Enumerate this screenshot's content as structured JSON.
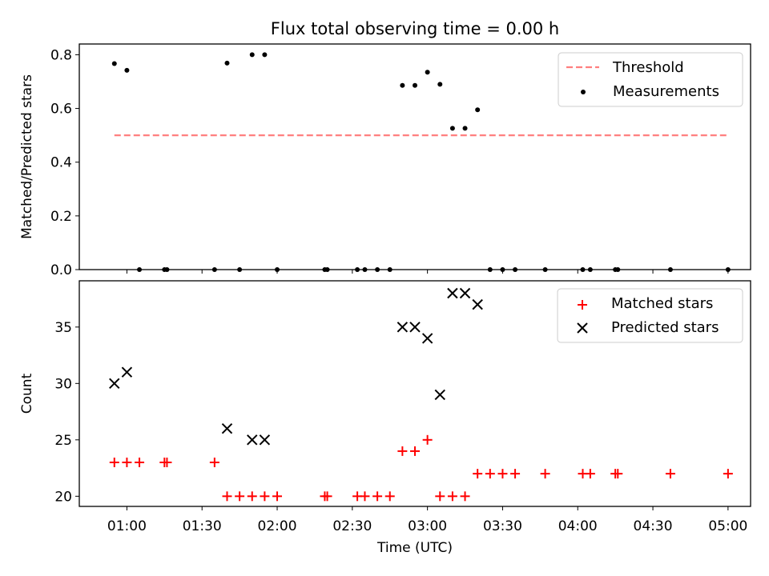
{
  "chart_data": [
    {
      "type": "scatter",
      "title": "Flux total observing time = 0.00 h",
      "xlabel": "",
      "ylabel": "Matched/Predicted stars",
      "xlim": [
        "00:41",
        "05:09"
      ],
      "ylim": [
        0,
        0.84
      ],
      "yticks": [
        0.0,
        0.2,
        0.4,
        0.6,
        0.8
      ],
      "ytick_labels": [
        "0.0",
        "0.2",
        "0.4",
        "0.6",
        "0.8"
      ],
      "legend_position": "top-right",
      "threshold": {
        "name": "Threshold",
        "value": 0.5,
        "x_start": "00:55",
        "x_end": "05:00",
        "color": "#ff7f7f"
      },
      "series": [
        {
          "name": "Measurements",
          "color": "#000000",
          "x": [
            "00:55",
            "01:00",
            "01:05",
            "01:15",
            "01:16",
            "01:35",
            "01:40",
            "01:45",
            "01:50",
            "01:55",
            "02:00",
            "02:19",
            "02:20",
            "02:32",
            "02:35",
            "02:40",
            "02:45",
            "02:50",
            "02:55",
            "03:00",
            "03:05",
            "03:10",
            "03:15",
            "03:20",
            "03:25",
            "03:30",
            "03:35",
            "03:47",
            "04:02",
            "04:05",
            "04:15",
            "04:16",
            "04:37",
            "05:00"
          ],
          "values": [
            0.767,
            0.742,
            0.0,
            0.0,
            0.0,
            0.0,
            0.769,
            0.0,
            0.8,
            0.8,
            0.0,
            0.0,
            0.0,
            0.0,
            0.0,
            0.0,
            0.0,
            0.686,
            0.686,
            0.735,
            0.69,
            0.526,
            0.526,
            0.595,
            0.0,
            0.0,
            0.0,
            0.0,
            0.0,
            0.0,
            0.0,
            0.0,
            0.0,
            0.0
          ]
        }
      ]
    },
    {
      "type": "scatter",
      "title": "",
      "xlabel": "Time (UTC)",
      "ylabel": "Count",
      "xlim": [
        "00:41",
        "05:09"
      ],
      "ylim": [
        19.1,
        39.1
      ],
      "yticks": [
        20,
        25,
        30,
        35
      ],
      "ytick_labels": [
        "20",
        "25",
        "30",
        "35"
      ],
      "xticks": [
        "01:00",
        "01:30",
        "02:00",
        "02:30",
        "03:00",
        "03:30",
        "04:00",
        "04:30",
        "05:00"
      ],
      "xtick_labels": [
        "01:00",
        "01:30",
        "02:00",
        "02:30",
        "03:00",
        "03:30",
        "04:00",
        "04:30",
        "05:00"
      ],
      "legend_position": "top-right",
      "series": [
        {
          "name": "Matched stars",
          "marker": "plus",
          "color": "#ff0000",
          "x": [
            "00:55",
            "01:00",
            "01:05",
            "01:15",
            "01:16",
            "01:35",
            "01:40",
            "01:45",
            "01:50",
            "01:55",
            "02:00",
            "02:19",
            "02:20",
            "02:32",
            "02:35",
            "02:40",
            "02:45",
            "02:50",
            "02:55",
            "03:00",
            "03:05",
            "03:10",
            "03:15",
            "03:20",
            "03:25",
            "03:30",
            "03:35",
            "03:47",
            "04:02",
            "04:05",
            "04:15",
            "04:16",
            "04:37",
            "05:00"
          ],
          "values": [
            23,
            23,
            23,
            23,
            23,
            23,
            20,
            20,
            20,
            20,
            20,
            20,
            20,
            20,
            20,
            20,
            20,
            24,
            24,
            25,
            20,
            20,
            20,
            22,
            22,
            22,
            22,
            22,
            22,
            22,
            22,
            22,
            22,
            22
          ]
        },
        {
          "name": "Predicted stars",
          "marker": "x",
          "color": "#000000",
          "x": [
            "00:55",
            "01:00",
            "01:40",
            "01:50",
            "01:55",
            "02:50",
            "02:55",
            "03:00",
            "03:05",
            "03:10",
            "03:15",
            "03:20"
          ],
          "values": [
            30,
            31,
            26,
            25,
            25,
            35,
            35,
            34,
            29,
            38,
            38,
            37
          ]
        }
      ]
    }
  ]
}
